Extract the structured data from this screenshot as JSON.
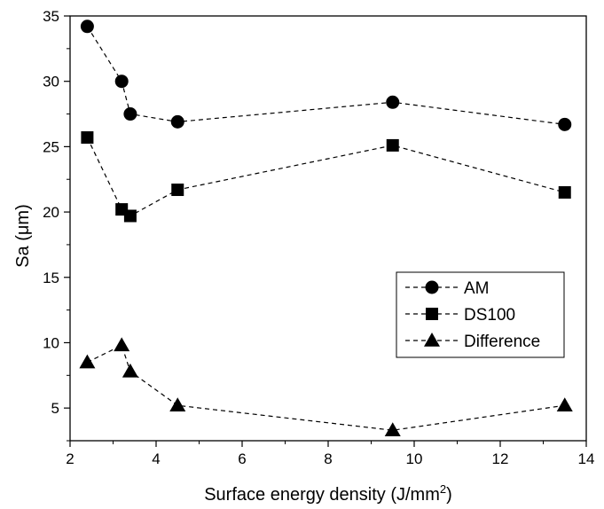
{
  "chart_data": {
    "type": "line",
    "xlabel": "Surface energy density (J/mm",
    "xlabel_sup": "2",
    "xlabel_end": ")",
    "ylabel": "Sa (μm)",
    "xlim": [
      2,
      14
    ],
    "ylim": [
      2.5,
      35
    ],
    "xticks": [
      2,
      4,
      6,
      8,
      10,
      12,
      14
    ],
    "yticks": [
      5,
      10,
      15,
      20,
      25,
      30,
      35
    ],
    "grid": false,
    "legend_position": "center-right",
    "series": [
      {
        "name": "AM",
        "marker": "circle",
        "x": [
          2.4,
          3.2,
          3.4,
          4.5,
          9.5,
          13.5
        ],
        "y": [
          34.2,
          30.0,
          27.5,
          26.9,
          28.4,
          26.7
        ]
      },
      {
        "name": "DS100",
        "marker": "square",
        "x": [
          2.4,
          3.2,
          3.4,
          4.5,
          9.5,
          13.5
        ],
        "y": [
          25.7,
          20.2,
          19.7,
          21.7,
          25.1,
          21.5
        ]
      },
      {
        "name": "Difference",
        "marker": "triangle",
        "x": [
          2.4,
          3.2,
          3.4,
          4.5,
          9.5,
          13.5
        ],
        "y": [
          8.5,
          9.8,
          7.8,
          5.2,
          3.3,
          5.2
        ]
      }
    ]
  }
}
